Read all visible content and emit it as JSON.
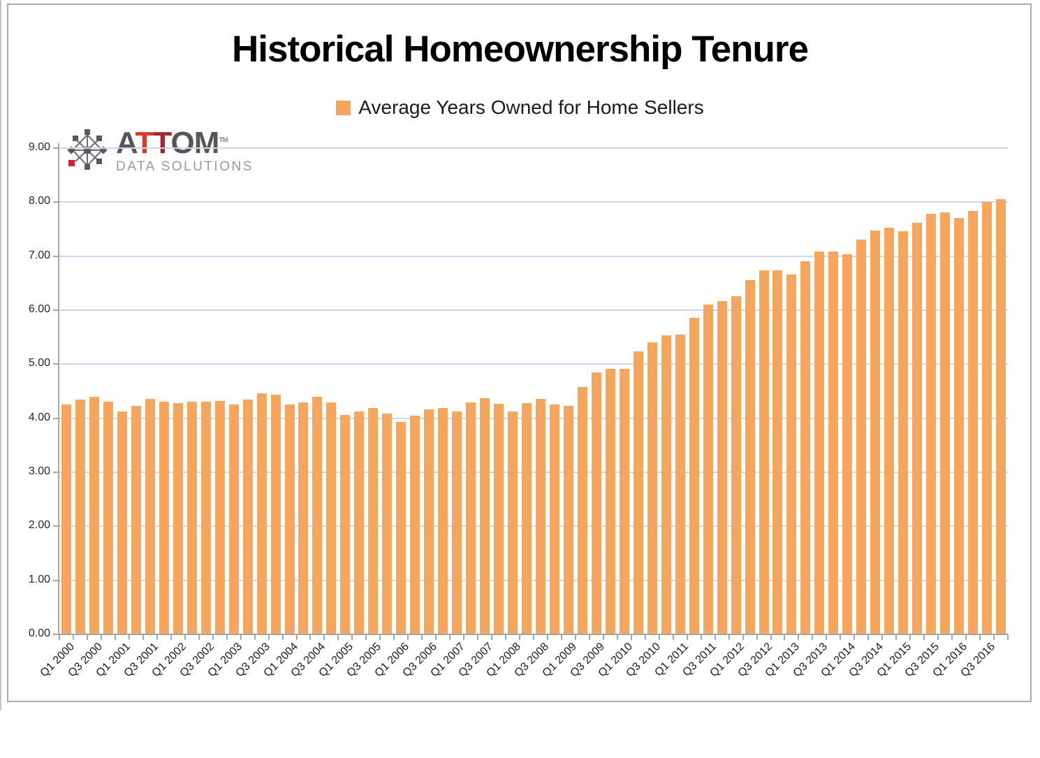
{
  "logo": {
    "brand_a": "A",
    "brand_t1": "T",
    "brand_t2": "T",
    "brand_om": "OM",
    "tm": "TM",
    "subtitle": "DATA SOLUTIONS"
  },
  "chart_data": {
    "type": "bar",
    "title": "Historical Homeownership Tenure",
    "legend_entries": [
      "Average Years Owned for Home Sellers"
    ],
    "legend_position": "top",
    "grid": "horizontal",
    "ylim": [
      0,
      9
    ],
    "ytick_step": 1,
    "ytick_labels": [
      "0.00",
      "1.00",
      "2.00",
      "3.00",
      "4.00",
      "5.00",
      "6.00",
      "7.00",
      "8.00",
      "9.00"
    ],
    "x_label_every": 2,
    "x_tick_labels": [
      "Q1 2000",
      "Q3 2000",
      "Q1 2001",
      "Q3 2001",
      "Q1 2002",
      "Q3 2002",
      "Q1 2003",
      "Q3 2003",
      "Q1 2004",
      "Q3 2004",
      "Q1 2005",
      "Q3 2005",
      "Q1 2006",
      "Q3 2006",
      "Q1 2007",
      "Q3 2007",
      "Q1 2008",
      "Q3 2008",
      "Q1 2009",
      "Q3 2009",
      "Q1 2010",
      "Q3 2010",
      "Q1 2011",
      "Q3 2011",
      "Q1 2012",
      "Q3 2012",
      "Q1 2013",
      "Q3 2013",
      "Q1 2014",
      "Q3 2014",
      "Q1 2015",
      "Q3 2015",
      "Q1 2016",
      "Q3 2016"
    ],
    "categories": [
      "Q1 2000",
      "Q2 2000",
      "Q3 2000",
      "Q4 2000",
      "Q1 2001",
      "Q2 2001",
      "Q3 2001",
      "Q4 2001",
      "Q1 2002",
      "Q2 2002",
      "Q3 2002",
      "Q4 2002",
      "Q1 2003",
      "Q2 2003",
      "Q3 2003",
      "Q4 2003",
      "Q1 2004",
      "Q2 2004",
      "Q3 2004",
      "Q4 2004",
      "Q1 2005",
      "Q2 2005",
      "Q3 2005",
      "Q4 2005",
      "Q1 2006",
      "Q2 2006",
      "Q3 2006",
      "Q4 2006",
      "Q1 2007",
      "Q2 2007",
      "Q3 2007",
      "Q4 2007",
      "Q1 2008",
      "Q2 2008",
      "Q3 2008",
      "Q4 2008",
      "Q1 2009",
      "Q2 2009",
      "Q3 2009",
      "Q4 2009",
      "Q1 2010",
      "Q2 2010",
      "Q3 2010",
      "Q4 2010",
      "Q1 2011",
      "Q2 2011",
      "Q3 2011",
      "Q4 2011",
      "Q1 2012",
      "Q2 2012",
      "Q3 2012",
      "Q4 2012",
      "Q1 2013",
      "Q2 2013",
      "Q3 2013",
      "Q4 2013",
      "Q1 2014",
      "Q2 2014",
      "Q3 2014",
      "Q4 2014",
      "Q1 2015",
      "Q2 2015",
      "Q3 2015",
      "Q4 2015",
      "Q1 2016",
      "Q2 2016",
      "Q3 2016",
      "Q4 2016"
    ],
    "values": [
      4.26,
      4.35,
      4.4,
      4.31,
      4.13,
      4.23,
      4.36,
      4.3,
      4.28,
      4.3,
      4.31,
      4.32,
      4.26,
      4.35,
      4.46,
      4.44,
      4.25,
      4.29,
      4.4,
      4.29,
      4.06,
      4.13,
      4.19,
      4.09,
      3.93,
      4.05,
      4.17,
      4.19,
      4.13,
      4.29,
      4.37,
      4.27,
      4.12,
      4.28,
      4.36,
      4.25,
      4.23,
      4.58,
      4.85,
      4.91,
      4.92,
      5.24,
      5.41,
      5.53,
      5.55,
      5.86,
      6.1,
      6.17,
      6.26,
      6.56,
      6.74,
      6.74,
      6.66,
      6.9,
      7.09,
      7.08,
      7.04,
      7.31,
      7.48,
      7.52,
      7.46,
      7.61,
      7.78,
      7.81,
      7.71,
      7.84,
      8.0,
      8.06
    ],
    "colors": {
      "bar": "#F6A55C",
      "gridline": "#C9D7EE",
      "axis": "#A6A6A6",
      "text": "#1A1A1A",
      "title": "#000000"
    }
  }
}
